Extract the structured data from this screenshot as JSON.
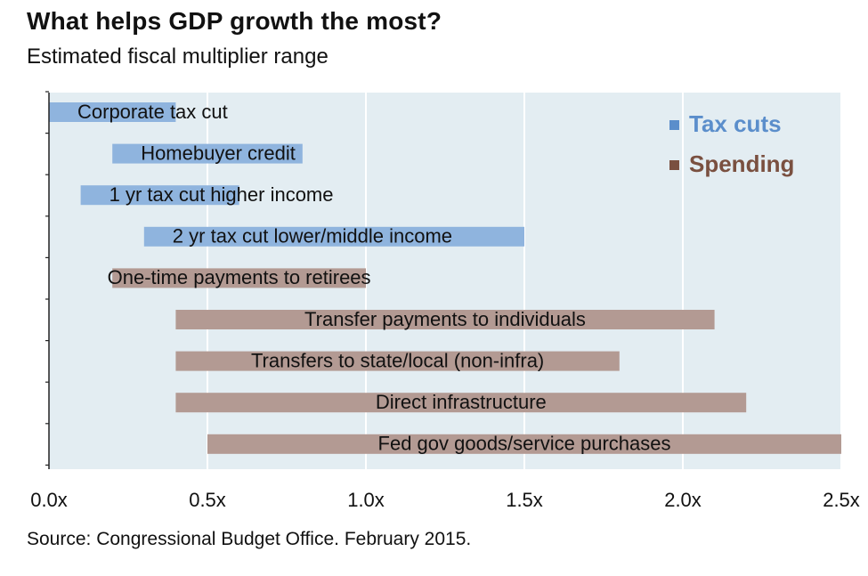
{
  "title": "What helps GDP growth the most?",
  "subtitle": "Estimated fiscal multiplier range",
  "source": "Source: Congressional Budget Office. February 2015.",
  "colors": {
    "plot_background": "#e3edf2",
    "gridline": "#ffffff",
    "tax_cuts": "#8fb4de",
    "spending": "#b39a93",
    "tax_cuts_legend": "#5b8ecb",
    "spending_legend": "#7a5040",
    "text": "#111111"
  },
  "chart_data": {
    "type": "bar",
    "orientation": "horizontal",
    "title": "What helps GDP growth the most?",
    "subtitle": "Estimated fiscal multiplier range",
    "xlabel": "",
    "ylabel": "",
    "xlim": [
      0,
      2.5
    ],
    "x_ticks": [
      0,
      0.5,
      1.0,
      1.5,
      2.0,
      2.5
    ],
    "x_tick_labels": [
      "0.0x",
      "0.5x",
      "1.0x",
      "1.5x",
      "2.0x",
      "2.5x"
    ],
    "grid": true,
    "legend_position": "top-right",
    "legend": [
      {
        "key": "tax",
        "label": "Tax cuts"
      },
      {
        "key": "spending",
        "label": "Spending"
      }
    ],
    "bars": [
      {
        "label": "Corporate tax cut",
        "low": 0.0,
        "high": 0.4,
        "group": "tax"
      },
      {
        "label": "Homebuyer credit",
        "low": 0.2,
        "high": 0.8,
        "group": "tax"
      },
      {
        "label": "1 yr tax cut higher income",
        "low": 0.1,
        "high": 0.6,
        "group": "tax"
      },
      {
        "label": "2 yr tax cut lower/middle income",
        "low": 0.3,
        "high": 1.5,
        "group": "tax"
      },
      {
        "label": "One-time payments to retirees",
        "low": 0.2,
        "high": 1.0,
        "group": "spending"
      },
      {
        "label": "Transfer payments to individuals",
        "low": 0.4,
        "high": 2.1,
        "group": "spending"
      },
      {
        "label": "Transfers to state/local (non-infra)",
        "low": 0.4,
        "high": 1.8,
        "group": "spending"
      },
      {
        "label": "Direct infrastructure",
        "low": 0.4,
        "high": 2.2,
        "group": "spending"
      },
      {
        "label": "Fed gov goods/service purchases",
        "low": 0.5,
        "high": 2.5,
        "group": "spending"
      }
    ]
  }
}
